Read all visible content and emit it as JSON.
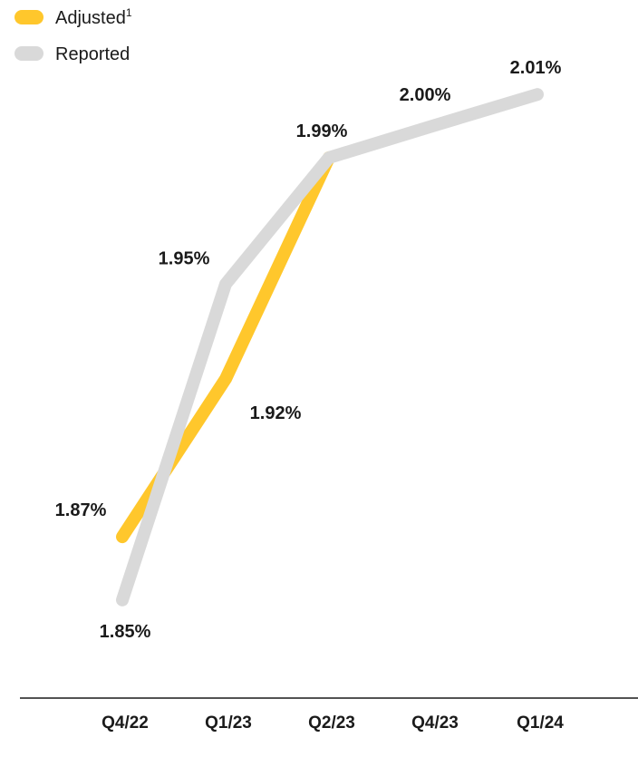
{
  "chart_data": {
    "type": "line",
    "categories": [
      "Q4/22",
      "Q1/23",
      "Q2/23",
      "Q4/23",
      "Q1/24"
    ],
    "series": [
      {
        "name": "Adjusted",
        "name_superscript": "1",
        "color": "#FFC72C",
        "values": [
          1.87,
          1.92,
          1.99,
          null,
          null
        ],
        "labels": [
          "1.87%",
          "1.92%",
          null,
          null,
          null
        ]
      },
      {
        "name": "Reported",
        "color": "#D9D9D9",
        "values": [
          1.85,
          1.95,
          1.99,
          2.0,
          2.01
        ],
        "labels": [
          "1.85%",
          "1.95%",
          "1.99%",
          "2.00%",
          "2.01%"
        ]
      }
    ],
    "ylim": [
      1.83,
      2.03
    ],
    "legend": "top-left",
    "grid": false,
    "title": "",
    "xlabel": "",
    "ylabel": ""
  }
}
